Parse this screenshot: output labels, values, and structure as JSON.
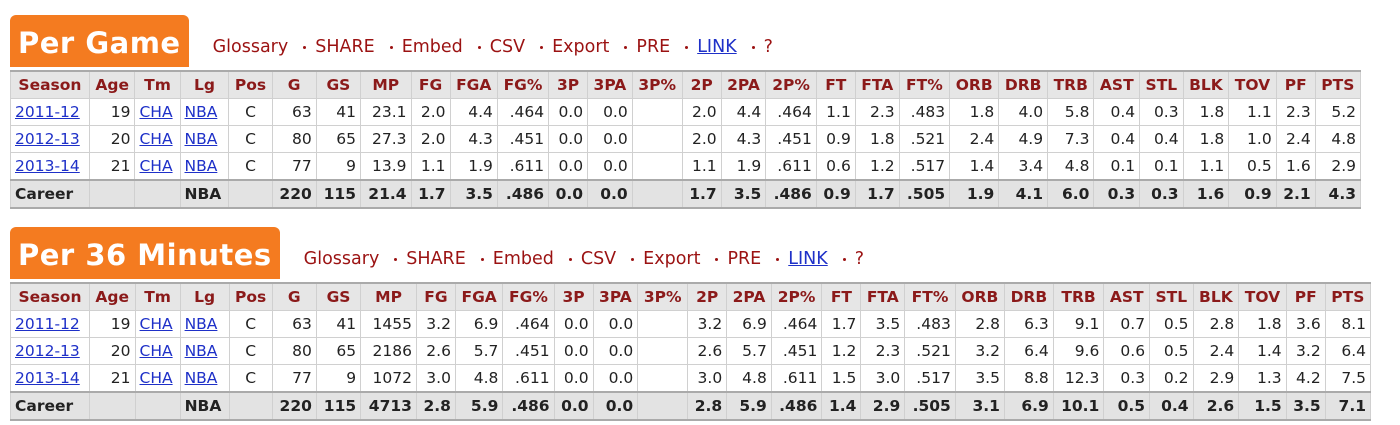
{
  "sections": [
    {
      "title": "Per Game",
      "toolbar": [
        "Glossary",
        "SHARE",
        "Embed",
        "CSV",
        "Export",
        "PRE",
        "LINK",
        "?"
      ],
      "table": {
        "header": [
          "Season",
          "Age",
          "Tm",
          "Lg",
          "Pos",
          "G",
          "GS",
          "MP",
          "FG",
          "FGA",
          "FG%",
          "3P",
          "3PA",
          "3P%",
          "2P",
          "2PA",
          "2P%",
          "FT",
          "FTA",
          "FT%",
          "ORB",
          "DRB",
          "TRB",
          "AST",
          "STL",
          "BLK",
          "TOV",
          "PF",
          "PTS"
        ],
        "rows": [
          [
            "2011-12",
            "19",
            "CHA",
            "NBA",
            "C",
            "63",
            "41",
            "23.1",
            "2.0",
            "4.4",
            ".464",
            "0.0",
            "0.0",
            null,
            "2.0",
            "4.4",
            ".464",
            "1.1",
            "2.3",
            ".483",
            "1.8",
            "4.0",
            "5.8",
            "0.4",
            "0.3",
            "1.8",
            "1.1",
            "2.3",
            "5.2"
          ],
          [
            "2012-13",
            "20",
            "CHA",
            "NBA",
            "C",
            "80",
            "65",
            "27.3",
            "2.0",
            "4.3",
            ".451",
            "0.0",
            "0.0",
            null,
            "2.0",
            "4.3",
            ".451",
            "0.9",
            "1.8",
            ".521",
            "2.4",
            "4.9",
            "7.3",
            "0.4",
            "0.4",
            "1.8",
            "1.0",
            "2.4",
            "4.8"
          ],
          [
            "2013-14",
            "21",
            "CHA",
            "NBA",
            "C",
            "77",
            "9",
            "13.9",
            "1.1",
            "1.9",
            ".611",
            "0.0",
            "0.0",
            null,
            "1.1",
            "1.9",
            ".611",
            "0.6",
            "1.2",
            ".517",
            "1.4",
            "3.4",
            "4.8",
            "0.1",
            "0.1",
            "1.1",
            "0.5",
            "1.6",
            "2.9"
          ],
          [
            "Career",
            null,
            null,
            "NBA",
            null,
            "220",
            "115",
            "21.4",
            "1.7",
            "3.5",
            ".486",
            "0.0",
            "0.0",
            null,
            "1.7",
            "3.5",
            ".486",
            "0.9",
            "1.7",
            ".505",
            "1.9",
            "4.1",
            "6.0",
            "0.3",
            "0.3",
            "1.6",
            "0.9",
            "2.1",
            "4.3"
          ]
        ]
      }
    },
    {
      "title": "Per 36 Minutes",
      "toolbar": [
        "Glossary",
        "SHARE",
        "Embed",
        "CSV",
        "Export",
        "PRE",
        "LINK",
        "?"
      ],
      "table": {
        "header": [
          "Season",
          "Age",
          "Tm",
          "Lg",
          "Pos",
          "G",
          "GS",
          "MP",
          "FG",
          "FGA",
          "FG%",
          "3P",
          "3PA",
          "3P%",
          "2P",
          "2PA",
          "2P%",
          "FT",
          "FTA",
          "FT%",
          "ORB",
          "DRB",
          "TRB",
          "AST",
          "STL",
          "BLK",
          "TOV",
          "PF",
          "PTS"
        ],
        "rows": [
          [
            "2011-12",
            "19",
            "CHA",
            "NBA",
            "C",
            "63",
            "41",
            "1455",
            "3.2",
            "6.9",
            ".464",
            "0.0",
            "0.0",
            null,
            "3.2",
            "6.9",
            ".464",
            "1.7",
            "3.5",
            ".483",
            "2.8",
            "6.3",
            "9.1",
            "0.7",
            "0.5",
            "2.8",
            "1.8",
            "3.6",
            "8.1"
          ],
          [
            "2012-13",
            "20",
            "CHA",
            "NBA",
            "C",
            "80",
            "65",
            "2186",
            "2.6",
            "5.7",
            ".451",
            "0.0",
            "0.0",
            null,
            "2.6",
            "5.7",
            ".451",
            "1.2",
            "2.3",
            ".521",
            "3.2",
            "6.4",
            "9.6",
            "0.6",
            "0.5",
            "2.4",
            "1.4",
            "3.2",
            "6.4"
          ],
          [
            "2013-14",
            "21",
            "CHA",
            "NBA",
            "C",
            "77",
            "9",
            "1072",
            "3.0",
            "4.8",
            ".611",
            "0.0",
            "0.0",
            null,
            "3.0",
            "4.8",
            ".611",
            "1.5",
            "3.0",
            ".517",
            "3.5",
            "8.8",
            "12.3",
            "0.3",
            "0.2",
            "2.9",
            "1.3",
            "4.2",
            "7.5"
          ],
          [
            "Career",
            null,
            null,
            "NBA",
            null,
            "220",
            "115",
            "4713",
            "2.8",
            "5.9",
            ".486",
            "0.0",
            "0.0",
            null,
            "2.8",
            "5.9",
            ".486",
            "1.4",
            "2.9",
            ".505",
            "3.1",
            "6.9",
            "10.1",
            "0.5",
            "0.4",
            "2.6",
            "1.5",
            "3.5",
            "7.1"
          ]
        ]
      }
    }
  ]
}
